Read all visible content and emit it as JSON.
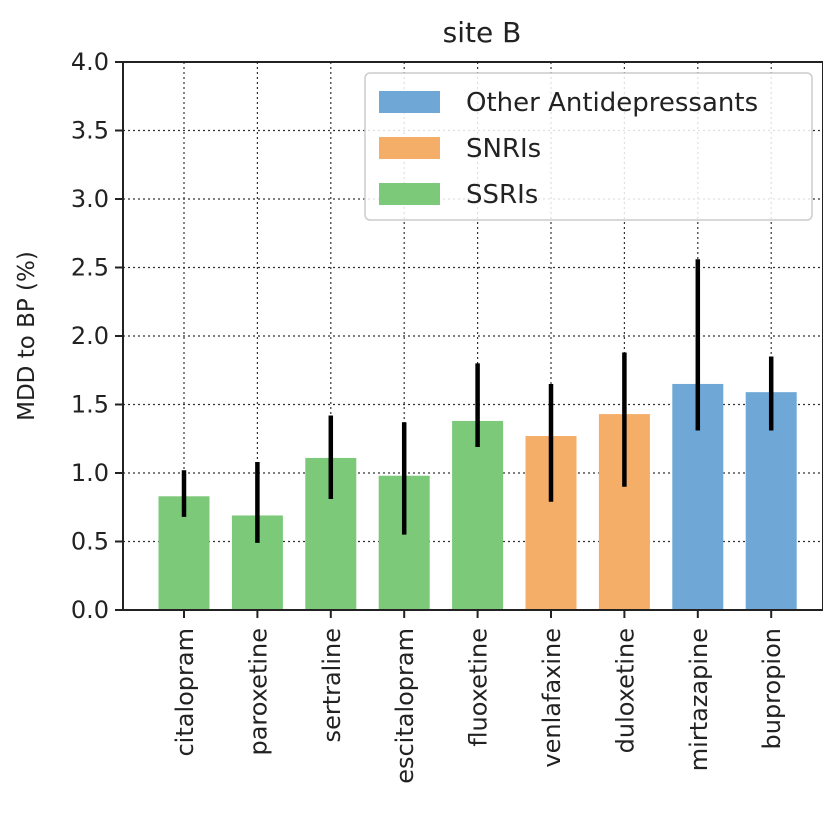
{
  "chart_data": {
    "type": "bar",
    "title": "site B",
    "xlabel": "",
    "ylabel": "MDD to BP (%)",
    "ylim": [
      0,
      4.0
    ],
    "yticks": [
      "0.0",
      "0.5",
      "1.0",
      "1.5",
      "2.0",
      "2.5",
      "3.0",
      "3.5",
      "4.0"
    ],
    "grid": true,
    "legend_placement": "top-right",
    "categories": [
      "citalopram",
      "paroxetine",
      "sertraline",
      "escitalopram",
      "fluoxetine",
      "venlafaxine",
      "duloxetine",
      "mirtazapine",
      "bupropion"
    ],
    "values": [
      0.83,
      0.69,
      1.11,
      0.98,
      1.38,
      1.27,
      1.43,
      1.65,
      1.59
    ],
    "error_low": [
      0.68,
      0.49,
      0.81,
      0.55,
      1.19,
      0.79,
      0.9,
      1.31,
      1.31
    ],
    "error_high": [
      1.02,
      1.08,
      1.42,
      1.37,
      1.8,
      1.65,
      1.88,
      2.56,
      1.85
    ],
    "groups": [
      "SSRIs",
      "SSRIs",
      "SSRIs",
      "SSRIs",
      "SSRIs",
      "SNRIs",
      "SNRIs",
      "Other Antidepressants",
      "Other Antidepressants"
    ],
    "legend": [
      {
        "name": "Other Antidepressants",
        "color": "#6fa8d6"
      },
      {
        "name": "SNRIs",
        "color": "#f5ae68"
      },
      {
        "name": "SSRIs",
        "color": "#7cc97a"
      }
    ],
    "error_bar_color": "#000000"
  }
}
